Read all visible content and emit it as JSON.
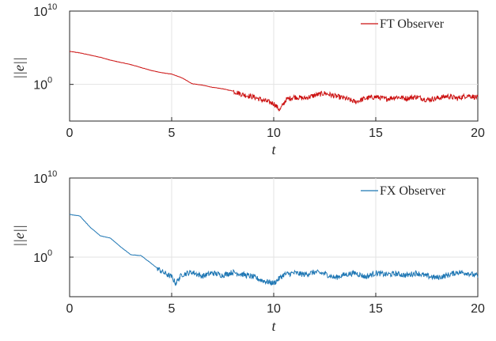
{
  "chart_data": [
    {
      "type": "line",
      "title": "",
      "xlabel": "t",
      "ylabel": "||e||",
      "xlim": [
        0,
        20
      ],
      "ylim_log10": [
        -5,
        10
      ],
      "yscale": "log",
      "grid": true,
      "legend_position": "top-right",
      "x_ticks": [
        "0",
        "5",
        "10",
        "15",
        "20"
      ],
      "y_ticks": [
        {
          "base": "10",
          "exp": "10"
        },
        {
          "base": "10",
          "exp": "0"
        }
      ],
      "series": [
        {
          "name": "FT Observer",
          "color": "#cc1111",
          "log10_values": [
            [
              0,
              4.5
            ],
            [
              0.5,
              4.3
            ],
            [
              1,
              4.0
            ],
            [
              1.5,
              3.7
            ],
            [
              2,
              3.3
            ],
            [
              2.5,
              3.0
            ],
            [
              3,
              2.7
            ],
            [
              3.5,
              2.3
            ],
            [
              4,
              1.9
            ],
            [
              4.5,
              1.6
            ],
            [
              5,
              1.4
            ],
            [
              5.5,
              0.9
            ],
            [
              6,
              0.1
            ],
            [
              6.5,
              -0.1
            ],
            [
              7,
              -0.4
            ],
            [
              7.5,
              -0.6
            ],
            [
              8,
              -0.9
            ],
            [
              8.5,
              -1.4
            ],
            [
              9,
              -1.7
            ],
            [
              9.5,
              -2.2
            ],
            [
              10,
              -2.6
            ],
            [
              10.3,
              -3.5
            ],
            [
              10.6,
              -2.1
            ],
            [
              11,
              -1.7
            ],
            [
              11.5,
              -1.9
            ],
            [
              12,
              -1.5
            ],
            [
              12.5,
              -1.2
            ],
            [
              13,
              -1.6
            ],
            [
              13.5,
              -1.9
            ],
            [
              14,
              -2.4
            ],
            [
              14.5,
              -1.9
            ],
            [
              15,
              -1.7
            ],
            [
              15.5,
              -2.0
            ],
            [
              16,
              -1.7
            ],
            [
              16.5,
              -1.9
            ],
            [
              17,
              -1.7
            ],
            [
              17.5,
              -2.1
            ],
            [
              18,
              -1.9
            ],
            [
              18.5,
              -1.6
            ],
            [
              19,
              -1.9
            ],
            [
              19.5,
              -1.5
            ],
            [
              20,
              -1.8
            ]
          ]
        },
        {
          "name": "FX Observer",
          "color": "#1f77b4",
          "log10_values": [
            [
              0,
              5.4
            ],
            [
              0.5,
              5.2
            ],
            [
              1,
              3.8
            ],
            [
              1.5,
              2.7
            ],
            [
              2,
              2.4
            ],
            [
              2.5,
              1.3
            ],
            [
              3,
              0.3
            ],
            [
              3.5,
              0.2
            ],
            [
              4,
              -0.8
            ],
            [
              4.5,
              -1.8
            ],
            [
              5,
              -2.5
            ],
            [
              5.2,
              -3.3
            ],
            [
              5.5,
              -2.2
            ],
            [
              6,
              -1.9
            ],
            [
              6.5,
              -2.4
            ],
            [
              7,
              -2.0
            ],
            [
              7.5,
              -2.3
            ],
            [
              8,
              -1.9
            ],
            [
              8.5,
              -2.2
            ],
            [
              9,
              -2.5
            ],
            [
              9.5,
              -3.0
            ],
            [
              10,
              -3.3
            ],
            [
              10.5,
              -2.2
            ],
            [
              11,
              -2.0
            ],
            [
              11.5,
              -2.2
            ],
            [
              12,
              -1.9
            ],
            [
              12.5,
              -2.1
            ],
            [
              13,
              -2.6
            ],
            [
              13.5,
              -2.2
            ],
            [
              14,
              -2.0
            ],
            [
              14.5,
              -2.5
            ],
            [
              15,
              -2.0
            ],
            [
              15.5,
              -2.2
            ],
            [
              16,
              -2.1
            ],
            [
              16.5,
              -2.3
            ],
            [
              17,
              -2.0
            ],
            [
              17.5,
              -2.4
            ],
            [
              18,
              -2.6
            ],
            [
              18.5,
              -2.3
            ],
            [
              19,
              -1.9
            ],
            [
              19.5,
              -2.0
            ],
            [
              20,
              -2.4
            ]
          ]
        }
      ]
    }
  ]
}
